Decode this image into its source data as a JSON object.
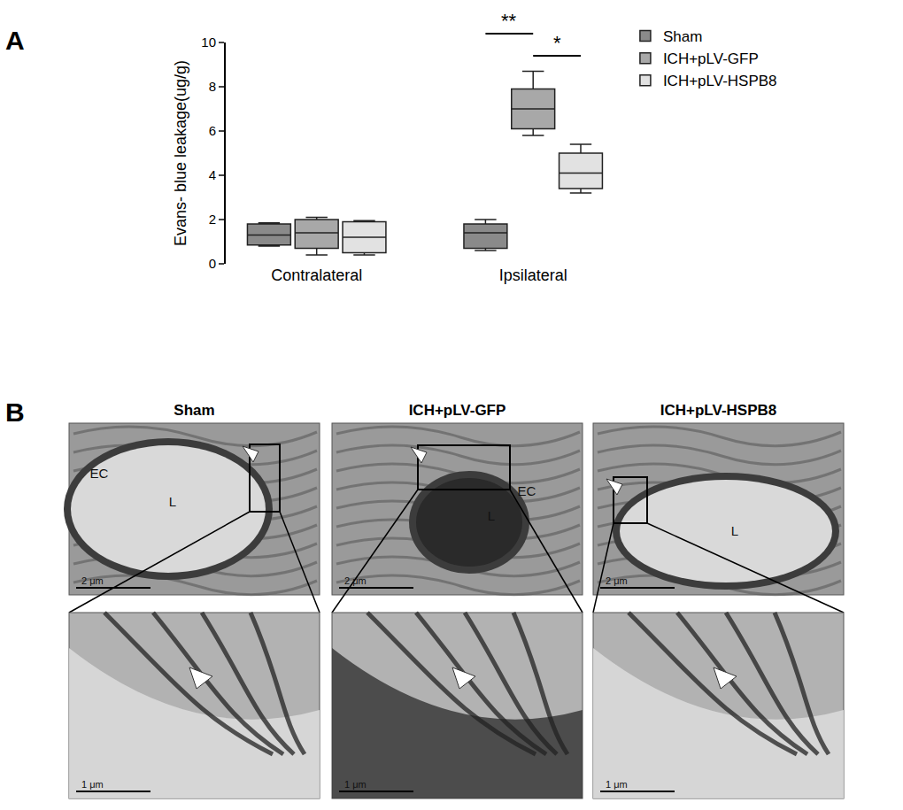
{
  "chart_data": {
    "type": "box",
    "y_label": "Evans- blue leakage(ug/g)",
    "categories": [
      "Contralateral",
      "Ipsilateral"
    ],
    "ylim": [
      0,
      10
    ],
    "yticks": [
      0,
      2,
      4,
      6,
      8,
      10
    ],
    "grid": false,
    "legend": "top right",
    "series": [
      {
        "name": "Sham",
        "color": "#8a8a8a",
        "min": [
          0.8,
          0.6
        ],
        "q1": [
          0.85,
          0.7
        ],
        "median": [
          1.3,
          1.4
        ],
        "q3": [
          1.8,
          1.8
        ],
        "max": [
          1.85,
          2.0
        ]
      },
      {
        "name": "ICH+pLV-GFP",
        "color": "#a8a8a8",
        "min": [
          0.4,
          5.8
        ],
        "q1": [
          0.7,
          6.1
        ],
        "median": [
          1.4,
          7.0
        ],
        "q3": [
          2.0,
          7.9
        ],
        "max": [
          2.1,
          8.7
        ]
      },
      {
        "name": "ICH+pLV-HSPB8",
        "color": "#e2e2e2",
        "min": [
          0.4,
          3.2
        ],
        "q1": [
          0.5,
          3.4
        ],
        "median": [
          1.2,
          4.1
        ],
        "q3": [
          1.9,
          5.0
        ],
        "max": [
          1.95,
          5.4
        ]
      }
    ],
    "annotations": [
      {
        "text": "*",
        "category": "Ipsilateral",
        "from": "ICH+pLV-GFP",
        "to": "ICH+pLV-HSPB8"
      },
      {
        "text": "**",
        "category": "Ipsilateral",
        "from": "Sham",
        "to": "ICH+pLV-GFP"
      }
    ]
  },
  "panel_labels": [
    "A",
    "B"
  ],
  "micrographs": {
    "columns": [
      {
        "title": "Sham",
        "labels": [
          "EC",
          "L"
        ]
      },
      {
        "title": "ICH+pLV-GFP",
        "labels": [
          "L",
          "EC"
        ]
      },
      {
        "title": "ICH+pLV-HSPB8",
        "labels": [
          "L"
        ]
      }
    ],
    "scale_bars": {
      "top": "2 μm",
      "bottom": "1 μm"
    }
  }
}
